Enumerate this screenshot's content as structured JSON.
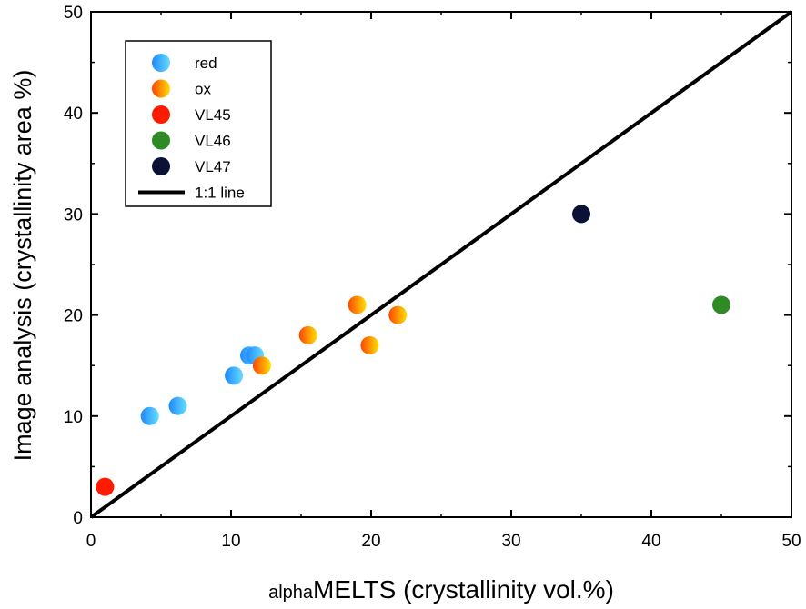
{
  "chart_data": {
    "type": "scatter",
    "title": "",
    "xlabel": {
      "prefix": "alpha",
      "main": "MELTS (crystallinity vol.%)"
    },
    "ylabel": "Image analysis (crystallinity area %)",
    "xlim": [
      0,
      50
    ],
    "ylim": [
      0,
      50
    ],
    "xticks": [
      0,
      10,
      20,
      30,
      40,
      50
    ],
    "yticks": [
      0,
      10,
      20,
      30,
      40,
      50
    ],
    "xtick_labels": [
      "0",
      "10",
      "20",
      "30",
      "40",
      "50"
    ],
    "ytick_labels": [
      "0",
      "10",
      "20",
      "30",
      "40",
      "50"
    ],
    "grid": false,
    "legend_position": "top-left",
    "series": [
      {
        "name": "red",
        "marker": "gradient-circle",
        "colors": [
          "#1e88ff",
          "#66ddff"
        ],
        "points": [
          [
            4.2,
            10
          ],
          [
            6.2,
            11
          ],
          [
            10.2,
            14
          ],
          [
            11.3,
            16
          ],
          [
            11.7,
            16
          ]
        ]
      },
      {
        "name": "ox",
        "marker": "gradient-circle",
        "colors": [
          "#ff4400",
          "#ffe000"
        ],
        "points": [
          [
            12.2,
            15
          ],
          [
            15.5,
            18
          ],
          [
            19.0,
            21
          ],
          [
            19.9,
            17
          ],
          [
            21.9,
            20
          ]
        ]
      },
      {
        "name": "VL45",
        "marker": "circle",
        "colors": [
          "#ff1a00"
        ],
        "points": [
          [
            1.0,
            3
          ]
        ]
      },
      {
        "name": "VL46",
        "marker": "circle",
        "colors": [
          "#2e8a23"
        ],
        "points": [
          [
            45.0,
            21
          ]
        ]
      },
      {
        "name": "VL47",
        "marker": "circle",
        "colors": [
          "#0b1236"
        ],
        "points": [
          [
            35.0,
            30
          ]
        ]
      }
    ],
    "reference_line": {
      "name": "1:1 line",
      "from": [
        0,
        0
      ],
      "to": [
        50,
        50
      ],
      "color": "#000000"
    }
  }
}
